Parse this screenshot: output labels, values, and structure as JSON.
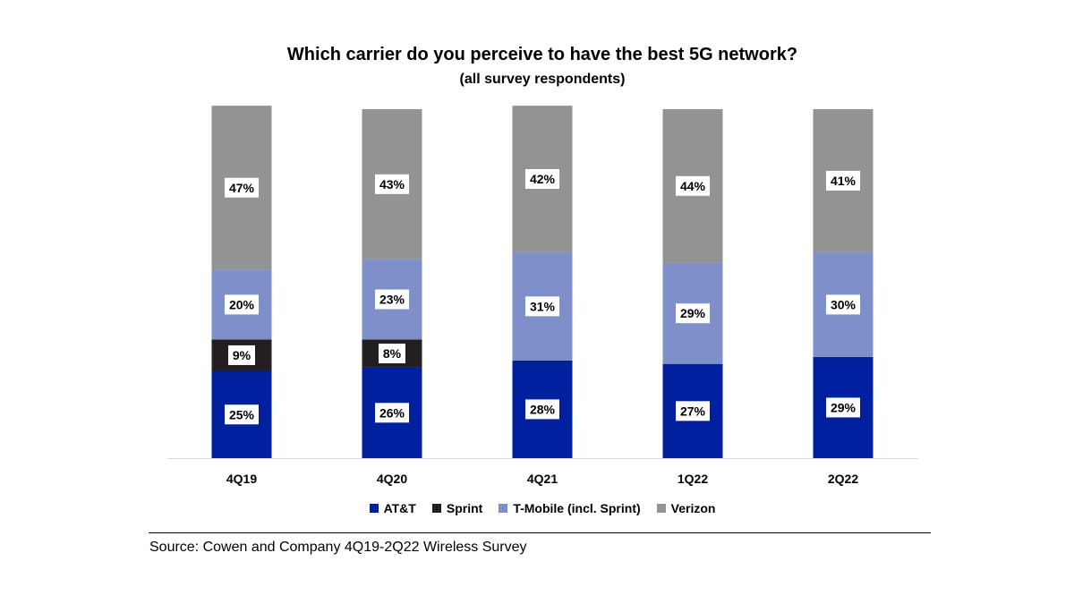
{
  "chart_data": {
    "type": "bar",
    "stacked": true,
    "title": "Which carrier do you perceive to have the best 5G network?",
    "subtitle": "(all survey respondents)",
    "categories": [
      "4Q19",
      "4Q20",
      "4Q21",
      "1Q22",
      "2Q22"
    ],
    "series": [
      {
        "name": "AT&T",
        "color": "#00209f",
        "values": [
          25,
          26,
          28,
          27,
          29
        ],
        "labels": [
          "25%",
          "26%",
          "28%",
          "27%",
          "29%"
        ]
      },
      {
        "name": "Sprint",
        "color": "#231f20",
        "values": [
          9,
          8,
          0,
          0,
          0
        ],
        "labels": [
          "9%",
          "8%",
          "",
          "",
          ""
        ]
      },
      {
        "name": "T-Mobile (incl. Sprint)",
        "color": "#7f8fc9",
        "values": [
          20,
          23,
          31,
          29,
          30
        ],
        "labels": [
          "20%",
          "23%",
          "31%",
          "29%",
          "30%"
        ]
      },
      {
        "name": "Verizon",
        "color": "#939393",
        "values": [
          47,
          43,
          42,
          44,
          41
        ],
        "labels": [
          "47%",
          "43%",
          "42%",
          "44%",
          "41%"
        ]
      }
    ],
    "ylim": [
      0,
      100
    ],
    "grid": false,
    "legend_position": "bottom",
    "source": "Source: Cowen and Company 4Q19-2Q22 Wireless Survey"
  }
}
